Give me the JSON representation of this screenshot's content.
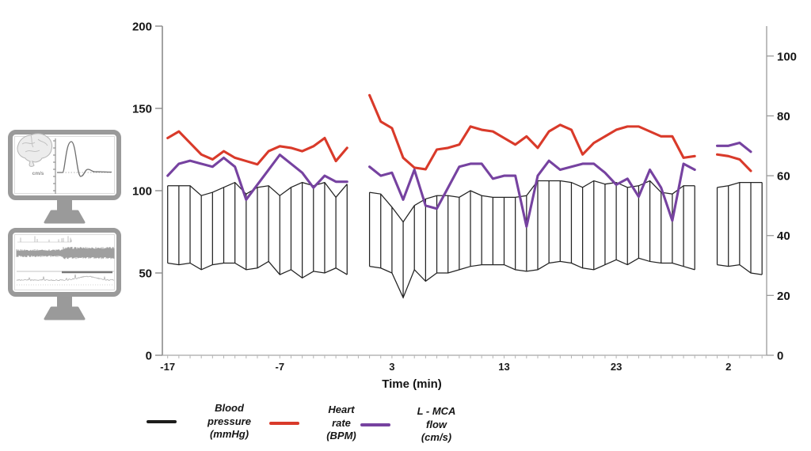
{
  "figure": {
    "background": "#ffffff"
  },
  "chart_data": {
    "type": "line",
    "title": "",
    "xlabel": "Time (min)",
    "grid": false,
    "x_axis": {
      "tick_count": 54,
      "minutes_per_tick": 1,
      "labels": [
        {
          "tick": 0,
          "text": "-17"
        },
        {
          "tick": 10,
          "text": "-7"
        },
        {
          "tick": 20,
          "text": "3"
        },
        {
          "tick": 30,
          "text": "13"
        },
        {
          "tick": 40,
          "text": "23"
        },
        {
          "tick": 50,
          "text": "2"
        }
      ],
      "note": "time restarts at '2' for the final (recovery) segment; data gaps at ticks 17 and 48"
    },
    "left_axis": {
      "ticks": [
        0,
        50,
        100,
        150,
        200
      ],
      "range": [
        0,
        200
      ]
    },
    "right_axis": {
      "ticks": [
        0,
        20,
        40,
        60,
        80,
        100
      ],
      "range": [
        0,
        110
      ]
    },
    "series": [
      {
        "name": "Blood pressure systolic (mmHg)",
        "role": "band-upper",
        "axis": "left",
        "color": "#232323",
        "segments": [
          {
            "start": 0,
            "values": [
              103,
              103,
              103,
              97,
              99,
              102,
              105,
              98,
              102,
              103,
              97,
              102,
              105,
              103,
              105,
              96,
              104
            ]
          },
          {
            "start": 18,
            "values": [
              99,
              98,
              90,
              81,
              91,
              95,
              97,
              97,
              96,
              100,
              97,
              96,
              96,
              96,
              97,
              106,
              106,
              106,
              105,
              102,
              106,
              104,
              105,
              102,
              103,
              106,
              99,
              98,
              103,
              103
            ]
          },
          {
            "start": 49,
            "values": [
              102,
              103,
              105,
              105,
              105
            ]
          }
        ]
      },
      {
        "name": "Blood pressure diastolic (mmHg)",
        "role": "band-lower",
        "axis": "left",
        "color": "#232323",
        "segments": [
          {
            "start": 0,
            "values": [
              56,
              55,
              56,
              52,
              55,
              56,
              56,
              52,
              53,
              57,
              49,
              52,
              47,
              51,
              50,
              53,
              49
            ]
          },
          {
            "start": 18,
            "values": [
              54,
              53,
              50,
              35,
              52,
              45,
              50,
              50,
              52,
              54,
              55,
              55,
              55,
              52,
              51,
              52,
              56,
              57,
              56,
              53,
              52,
              55,
              58,
              55,
              59,
              57,
              56,
              56,
              54,
              52
            ]
          },
          {
            "start": 49,
            "values": [
              55,
              54,
              55,
              50,
              49
            ]
          }
        ]
      },
      {
        "name": "Heart rate (BPM)",
        "role": "line",
        "axis": "left",
        "color": "#d93a2a",
        "segments": [
          {
            "start": 0,
            "values": [
              132,
              136,
              129,
              122,
              119,
              124,
              120,
              118,
              116,
              124,
              127,
              126,
              124,
              127,
              132,
              118,
              126
            ]
          },
          {
            "start": 18,
            "values": [
              158,
              142,
              138,
              120,
              114,
              113,
              125,
              126,
              128,
              139,
              137,
              136,
              132,
              128,
              133,
              126,
              136,
              140,
              137,
              122,
              129,
              133,
              137,
              139,
              139,
              136,
              133,
              133,
              120,
              121
            ]
          },
          {
            "start": 49,
            "values": [
              122,
              121,
              119,
              112
            ]
          }
        ]
      },
      {
        "name": "L - MCA flow (cm/s)",
        "role": "line",
        "axis": "right",
        "color": "#7642a0",
        "segments": [
          {
            "start": 0,
            "values": [
              60,
              64,
              65,
              64,
              63,
              66,
              63,
              52,
              57,
              62,
              67,
              64,
              61,
              56,
              60,
              58,
              58
            ]
          },
          {
            "start": 18,
            "values": [
              63,
              60,
              61,
              52,
              62,
              50,
              49,
              56,
              63,
              64,
              64,
              59,
              60,
              60,
              43,
              60,
              65,
              62,
              63,
              64,
              64,
              61,
              57,
              59,
              53,
              62,
              56,
              45,
              64,
              62
            ]
          },
          {
            "start": 49,
            "values": [
              70,
              70,
              71,
              68
            ]
          }
        ]
      }
    ]
  },
  "legend": {
    "items": [
      {
        "name": "blood-pressure",
        "label": "Blood\npressure\n(mmHg)",
        "color": "#1d1d1b"
      },
      {
        "name": "heart-rate",
        "label": "Heart\nrate\n(BPM)",
        "color": "#d93a2a"
      },
      {
        "name": "l-mca-flow",
        "label": "L - MCA\nflow\n(cm/s)",
        "color": "#7642a0"
      }
    ]
  },
  "monitors": {
    "tcd_label": "cm/s"
  }
}
